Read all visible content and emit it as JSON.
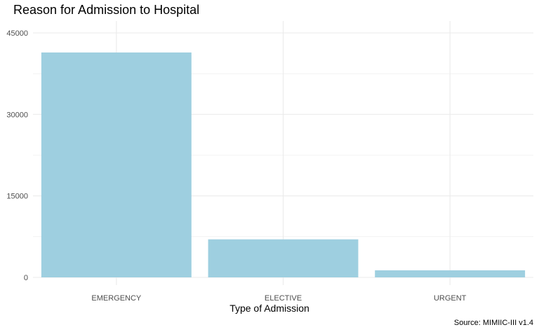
{
  "chart_data": {
    "type": "bar",
    "title": "Reason for Admission to Hospital",
    "xlabel": "Type of Admission",
    "ylabel": "",
    "caption": "Source: MIMIIC-III v1.4",
    "categories": [
      "EMERGENCY",
      "ELECTIVE",
      "URGENT"
    ],
    "values": [
      41400,
      7000,
      1300
    ],
    "ylim": [
      0,
      46500
    ],
    "yticks": [
      0,
      15000,
      30000,
      45000
    ],
    "ytick_labels": [
      "0",
      "15000",
      "30000",
      "45000"
    ],
    "grid": true,
    "legend": "none",
    "bar_color": "#9ecfe0",
    "grid_color": "#ebebeb"
  }
}
